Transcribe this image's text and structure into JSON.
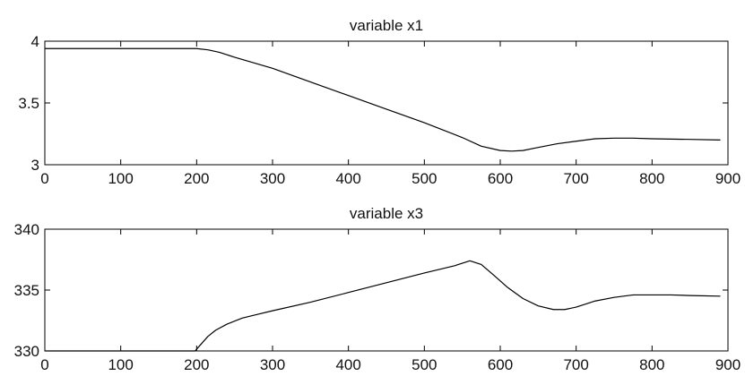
{
  "chart_data": [
    {
      "type": "line",
      "title": "variable x1",
      "xlabel": "",
      "ylabel": "",
      "xlim": [
        0,
        900
      ],
      "ylim": [
        3,
        4
      ],
      "xticks": [
        0,
        100,
        200,
        300,
        400,
        500,
        600,
        700,
        800,
        900
      ],
      "yticks": [
        3,
        3.5,
        4
      ],
      "ytick_labels": [
        "3",
        "3.5",
        "4"
      ],
      "grid": false,
      "series": [
        {
          "color": "#000000",
          "x": [
            0,
            50,
            100,
            150,
            200,
            215,
            230,
            250,
            300,
            350,
            400,
            450,
            500,
            550,
            575,
            600,
            615,
            630,
            650,
            675,
            700,
            725,
            750,
            775,
            800,
            850,
            890
          ],
          "y": [
            3.94,
            3.94,
            3.94,
            3.94,
            3.94,
            3.93,
            3.91,
            3.87,
            3.78,
            3.67,
            3.56,
            3.45,
            3.34,
            3.22,
            3.15,
            3.115,
            3.11,
            3.115,
            3.14,
            3.17,
            3.19,
            3.21,
            3.215,
            3.215,
            3.21,
            3.205,
            3.2
          ]
        }
      ]
    },
    {
      "type": "line",
      "title": "variable x3",
      "xlabel": "",
      "ylabel": "",
      "xlim": [
        0,
        900
      ],
      "ylim": [
        330,
        340
      ],
      "xticks": [
        0,
        100,
        200,
        300,
        400,
        500,
        600,
        700,
        800,
        900
      ],
      "yticks": [
        330,
        335,
        340
      ],
      "ytick_labels": [
        "330",
        "335",
        "340"
      ],
      "grid": false,
      "series": [
        {
          "color": "#000000",
          "x": [
            0,
            50,
            100,
            150,
            198,
            205,
            215,
            225,
            240,
            260,
            280,
            300,
            350,
            400,
            450,
            500,
            540,
            560,
            575,
            590,
            610,
            630,
            650,
            670,
            685,
            700,
            725,
            750,
            775,
            800,
            825,
            850,
            890
          ],
          "y": [
            330,
            330,
            330,
            330,
            330,
            330.5,
            331.2,
            331.7,
            332.2,
            332.7,
            333.0,
            333.3,
            334.0,
            334.8,
            335.6,
            336.4,
            337.0,
            337.4,
            337.1,
            336.3,
            335.2,
            334.3,
            333.7,
            333.4,
            333.4,
            333.6,
            334.1,
            334.4,
            334.6,
            334.6,
            334.6,
            334.55,
            334.5
          ]
        }
      ]
    }
  ]
}
